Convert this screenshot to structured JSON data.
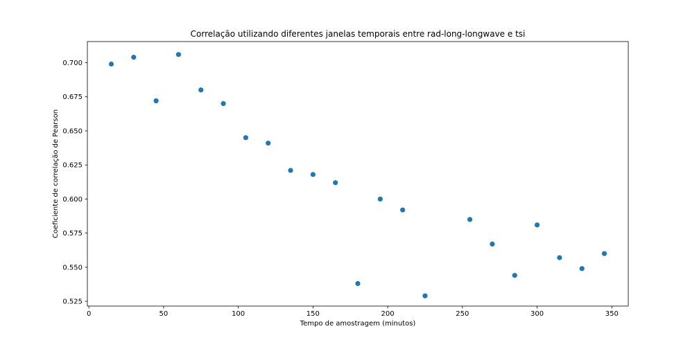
{
  "chart_data": {
    "type": "scatter",
    "title": "Correlação utilizando diferentes janelas temporais entre rad-long-longwave e tsi",
    "xlabel": "Tempo de amostragem (minutos)",
    "ylabel": "Coeficiente de correlação de Pearson",
    "xlim": [
      -1,
      361
    ],
    "ylim": [
      0.5215,
      0.7155
    ],
    "xticks": [
      0,
      50,
      100,
      150,
      200,
      250,
      300,
      350
    ],
    "yticks": [
      0.525,
      0.55,
      0.575,
      0.6,
      0.625,
      0.65,
      0.675,
      0.7
    ],
    "ytick_labels": [
      "0.525",
      "0.550",
      "0.575",
      "0.600",
      "0.625",
      "0.650",
      "0.675",
      "0.700"
    ],
    "grid": false,
    "color": "#1f77b4",
    "x": [
      15,
      30,
      45,
      60,
      75,
      90,
      105,
      120,
      135,
      150,
      165,
      180,
      195,
      210,
      225,
      255,
      270,
      285,
      300,
      315,
      330,
      345
    ],
    "y": [
      0.699,
      0.704,
      0.672,
      0.706,
      0.68,
      0.67,
      0.645,
      0.641,
      0.621,
      0.618,
      0.612,
      0.538,
      0.6,
      0.592,
      0.529,
      0.585,
      0.567,
      0.544,
      0.581,
      0.557,
      0.549,
      0.56
    ]
  }
}
